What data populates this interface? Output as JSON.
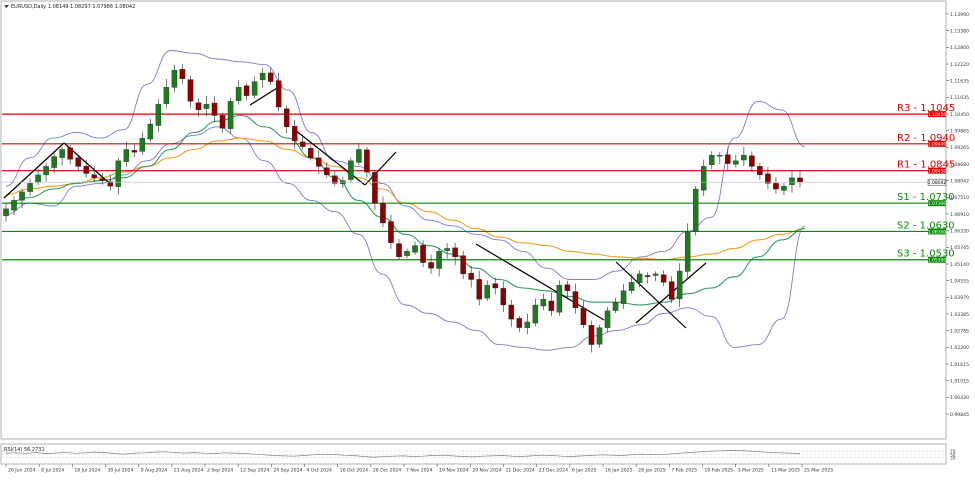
{
  "header": {
    "symbol_line": "EURUSD,Daily  1.08149 1.08297 1.07986 1.08042"
  },
  "rsi_panel": {
    "label": "RSI(14) 56.2731",
    "levels": [
      70,
      50,
      30
    ]
  },
  "colors": {
    "bull_candle": "#1f7a1f",
    "bear_candle": "#8b0000",
    "resistance": "#e00000",
    "support": "#0a8a0a",
    "bollinger": "#7b7bd6",
    "ma_fast": "#2e9e5e",
    "ma_slow": "#f0a020",
    "rsi_line": "#808080"
  },
  "levels": [
    {
      "label": "R3 - 1.1045",
      "tag": "1.10450",
      "value": 1.1045,
      "kind": "resistance"
    },
    {
      "label": "R2 - 1.0940",
      "tag": "1.09400",
      "value": 1.094,
      "kind": "resistance"
    },
    {
      "label": "R1 - 1.0845",
      "tag": "1.08450",
      "value": 1.0845,
      "kind": "resistance"
    },
    {
      "label": "S1 - 1.0730",
      "tag": "1.07300",
      "value": 1.073,
      "kind": "support"
    },
    {
      "label": "S2 - 1.0630",
      "tag": "1.06300",
      "value": 1.063,
      "kind": "support"
    },
    {
      "label": "S3 - 1.0530",
      "tag": "1.05300",
      "value": 1.053,
      "kind": "support"
    }
  ],
  "chart_data": {
    "type": "candlestick",
    "symbol": "EURUSD",
    "timeframe": "Daily",
    "last_close": 1.08042,
    "current_tag": "1.08042",
    "y_ticks": [
      "1.13990",
      "1.13380",
      "1.12800",
      "1.12220",
      "1.11635",
      "1.11035",
      "1.10450",
      "1.09865",
      "1.09265",
      "1.08680",
      "1.08042",
      "1.07510",
      "1.06910",
      "1.06330",
      "1.05745",
      "1.05140",
      "1.04555",
      "1.03970",
      "1.03385",
      "1.02785",
      "1.02200",
      "1.01615",
      "1.01015",
      "1.00430",
      "0.99845"
    ],
    "y_range": [
      0.99845,
      1.1399
    ],
    "x_ticks": [
      "26 Jun 2024",
      "8 Jul 2024",
      "18 Jul 2024",
      "30 Jul 2024",
      "9 Aug 2024",
      "21 Aug 2024",
      "2 Sep 2024",
      "12 Sep 2024",
      "24 Sep 2024",
      "4 Oct 2024",
      "16 Oct 2024",
      "28 Oct 2024",
      "7 Nov 2024",
      "19 Nov 2024",
      "29 Nov 2024",
      "11 Dec 2024",
      "23 Dec 2024",
      "6 Jan 2025",
      "16 Jan 2025",
      "28 Jan 2025",
      "7 Feb 2025",
      "19 Feb 2025",
      "3 Mar 2025",
      "13 Mar 2025",
      "25 Mar 2025"
    ],
    "close_path": [
      1.071,
      1.074,
      1.077,
      1.08,
      1.083,
      1.086,
      1.0895,
      1.092,
      1.0885,
      1.086,
      1.0835,
      1.082,
      1.081,
      1.079,
      1.088,
      1.092,
      1.091,
      1.096,
      1.101,
      1.108,
      1.114,
      1.12,
      1.117,
      1.109,
      1.106,
      1.108,
      1.104,
      1.0995,
      1.109,
      1.114,
      1.111,
      1.116,
      1.119,
      1.116,
      1.107,
      1.1,
      1.095,
      1.093,
      1.089,
      1.086,
      1.083,
      1.08,
      1.081,
      1.088,
      1.092,
      1.084,
      1.073,
      1.066,
      1.059,
      1.054,
      1.056,
      1.058,
      1.052,
      1.05,
      1.056,
      1.057,
      1.054,
      1.048,
      1.046,
      1.039,
      1.044,
      1.043,
      1.037,
      1.032,
      1.029,
      1.031,
      1.037,
      1.039,
      1.035,
      1.044,
      1.042,
      1.036,
      1.03,
      1.023,
      1.029,
      1.035,
      1.038,
      1.042,
      1.045,
      1.048,
      1.047,
      1.048,
      1.045,
      1.039,
      1.049,
      1.063,
      1.078,
      1.086,
      1.09,
      1.09,
      1.087,
      1.088,
      1.09,
      1.086,
      1.083,
      1.08,
      1.078,
      1.079,
      1.082,
      1.0804
    ],
    "bollinger_upper": [
      1.079,
      1.089,
      1.096,
      1.098,
      1.096,
      1.099,
      1.115,
      1.127,
      1.126,
      1.124,
      1.123,
      1.122,
      1.113,
      1.098,
      1.088,
      1.086,
      1.08,
      1.072,
      1.067,
      1.065,
      1.062,
      1.06,
      1.056,
      1.05,
      1.046,
      1.046,
      1.049,
      1.054,
      1.056,
      1.063,
      1.068,
      1.096,
      1.109,
      1.106,
      1.093
    ],
    "bollinger_lower": [
      1.069,
      1.073,
      1.072,
      1.079,
      1.08,
      1.083,
      1.088,
      1.094,
      1.097,
      1.1,
      1.096,
      1.088,
      1.08,
      1.074,
      1.07,
      1.062,
      1.048,
      1.037,
      1.034,
      1.031,
      1.028,
      1.023,
      1.022,
      1.021,
      1.022,
      1.026,
      1.028,
      1.03,
      1.034,
      1.036,
      1.033,
      1.022,
      1.023,
      1.032,
      1.065
    ],
    "ma_fast": [
      1.073,
      1.075,
      1.078,
      1.08,
      1.081,
      1.082,
      1.086,
      1.092,
      1.098,
      1.102,
      1.104,
      1.1,
      1.096,
      1.089,
      1.082,
      1.074,
      1.068,
      1.062,
      1.058,
      1.055,
      1.05,
      1.046,
      1.043,
      1.042,
      1.04,
      1.038,
      1.038,
      1.037,
      1.038,
      1.041,
      1.043,
      1.047,
      1.054,
      1.06,
      1.064
    ],
    "ma_slow": [
      1.076,
      1.078,
      1.079,
      1.08,
      1.082,
      1.084,
      1.086,
      1.089,
      1.092,
      1.095,
      1.096,
      1.095,
      1.092,
      1.089,
      1.086,
      1.082,
      1.078,
      1.073,
      1.07,
      1.067,
      1.064,
      1.061,
      1.059,
      1.058,
      1.056,
      1.055,
      1.054,
      1.0535,
      1.053,
      1.054,
      1.055,
      1.057,
      1.06,
      1.062,
      1.064
    ],
    "rsi_values": [
      58,
      60,
      57,
      62,
      55,
      58,
      63,
      57,
      60,
      64,
      61,
      55,
      52,
      58,
      60,
      64,
      66,
      62,
      58,
      61,
      57,
      55,
      60,
      58,
      56,
      52,
      48,
      44,
      42,
      40,
      44,
      48,
      52,
      50,
      46,
      44,
      38,
      35,
      37,
      40,
      42,
      38,
      40,
      44,
      46,
      42,
      38,
      36,
      40,
      42,
      44,
      40,
      38,
      42,
      46,
      44,
      40,
      38,
      42,
      45,
      48,
      46,
      44,
      48,
      52,
      50,
      48,
      54,
      58,
      62,
      66,
      70,
      72,
      74,
      73,
      70,
      66,
      62,
      60,
      58,
      56
    ]
  }
}
